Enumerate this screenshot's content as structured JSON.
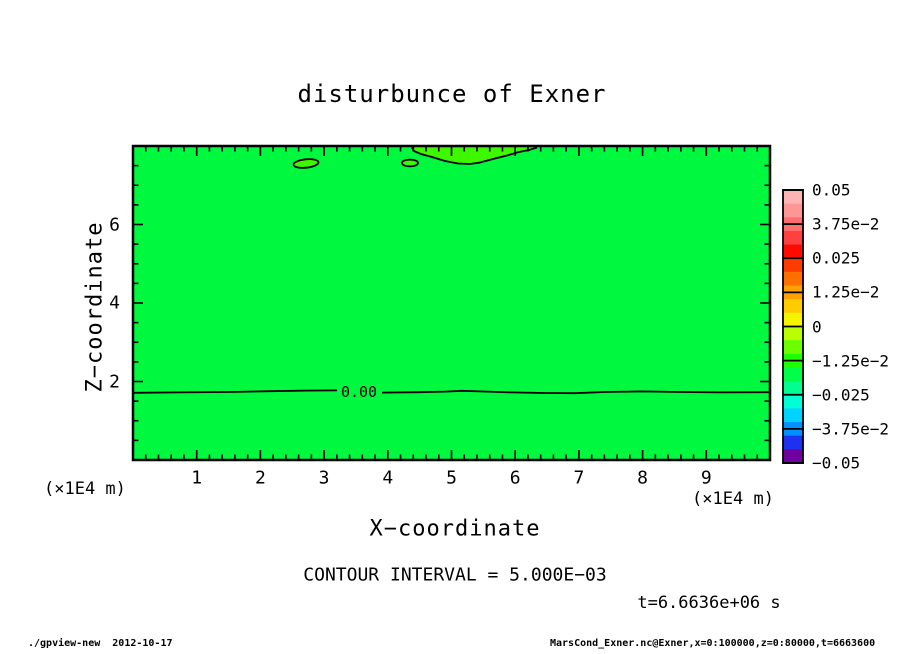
{
  "figure": {
    "title": "disturbunce of Exner",
    "x_axis": {
      "label": "X−coordinate",
      "unit": "(×1E4 m)",
      "ticks": [
        "1",
        "2",
        "3",
        "4",
        "5",
        "6",
        "7",
        "8",
        "9"
      ]
    },
    "y_axis": {
      "label": "Z−coordinate",
      "unit": "(×1E4 m)",
      "ticks": [
        "2",
        "4",
        "6"
      ]
    },
    "zero_contour_label": "0.00",
    "contour_note": "CONTOUR INTERVAL = 5.000E−03",
    "time_label": "t=6.6636e+06 s"
  },
  "colors": {
    "field_fill": "#00f83e",
    "positive_fill": "#3ef800",
    "frame": "#000000",
    "background": "#ffffff"
  },
  "colorbar": {
    "labels": [
      "0.05",
      "3.75e−2",
      "0.025",
      "1.25e−2",
      "0",
      "−1.25e−2",
      "−0.025",
      "−3.75e−2",
      "−0.05"
    ],
    "colors": [
      "#ffb4b4",
      "#ff9696",
      "#ff6e6e",
      "#ff4040",
      "#ff0a00",
      "#ff3c00",
      "#ff7000",
      "#ffa200",
      "#ffcc00",
      "#f4f400",
      "#baff00",
      "#6cff00",
      "#1eff00",
      "#00ff48",
      "#00ff90",
      "#00ffd4",
      "#00d2ff",
      "#0090ff",
      "#1e30f0",
      "#7000a0"
    ]
  },
  "footer": {
    "left": "./gpview-new  2012-10-17",
    "right": "MarsCond_Exner.nc@Exner,x=0:100000,z=0:80000,t=6663600"
  },
  "chart_data": {
    "type": "heatmap",
    "subtype": "filled-contour",
    "title": "disturbunce of Exner",
    "xlabel": "X−coordinate (×1E4 m)",
    "ylabel": "Z−coordinate (×1E4 m)",
    "xlim": [
      0,
      10
    ],
    "ylim": [
      0,
      8
    ],
    "x_major_tick_step": 1,
    "x_minor_tick_step": 0.2,
    "y_major_ticks": [
      2,
      4,
      6
    ],
    "y_minor_tick_step": 0.5,
    "contour_interval": 0.005,
    "colorbar_levels": [
      0.05,
      0.0375,
      0.025,
      0.0125,
      0,
      -0.0125,
      -0.025,
      -0.0375,
      -0.05
    ],
    "legend_position": "right",
    "grid": false,
    "field_description": "Exner function disturbance; entire domain lies in the band between −5e−3 and +5e−3 (green shades)",
    "features": [
      {
        "kind": "zero-contour-line",
        "label": "0.00",
        "shape": "nearly horizontal line across full x range",
        "z": 1.72
      },
      {
        "kind": "closed-zero-contour",
        "x_center": 2.72,
        "z_center": 7.55,
        "x_halfwidth": 0.2,
        "z_halfwidth": 0.11
      },
      {
        "kind": "closed-zero-contour",
        "x_center": 4.35,
        "z_center": 7.56,
        "x_halfwidth": 0.13,
        "z_halfwidth": 0.09
      },
      {
        "kind": "positive-region-at-top-boundary",
        "x_from": 4.38,
        "x_to": 6.35,
        "z_from": 7.55,
        "z_to": 8.0
      }
    ],
    "time": "t=6.6636e+06 s"
  }
}
